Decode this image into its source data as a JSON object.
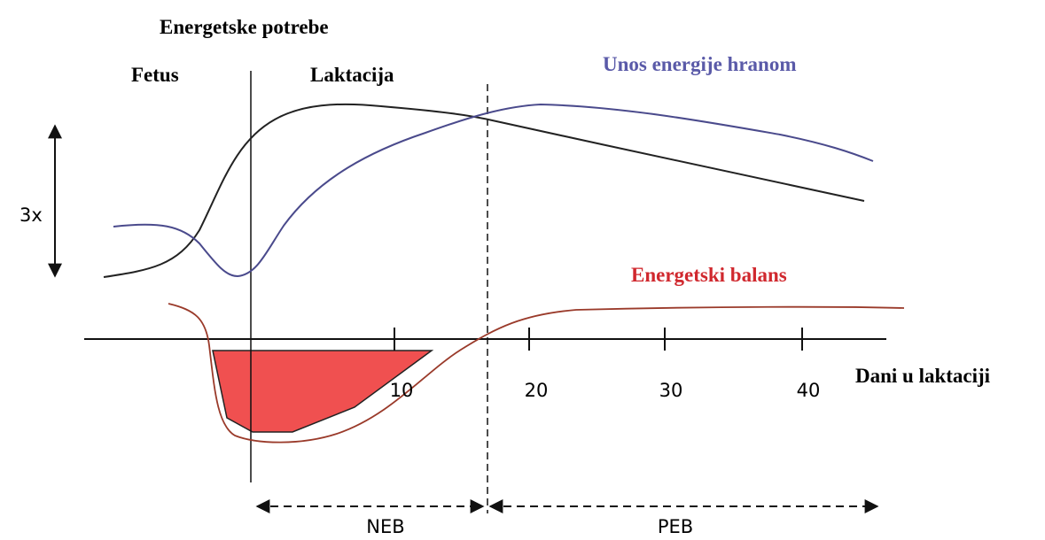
{
  "header": {
    "title": "Energetske potrebe"
  },
  "labels": {
    "fetus": "Fetus",
    "laktacija": "Laktacija",
    "intake": "Unos energije hranom",
    "balance": "Energetski balans",
    "scale": "3x",
    "x_axis": "Dani u laktaciji",
    "neb": "NEB",
    "peb": "PEB"
  },
  "ticks": [
    "10",
    "20",
    "30",
    "40"
  ]
}
